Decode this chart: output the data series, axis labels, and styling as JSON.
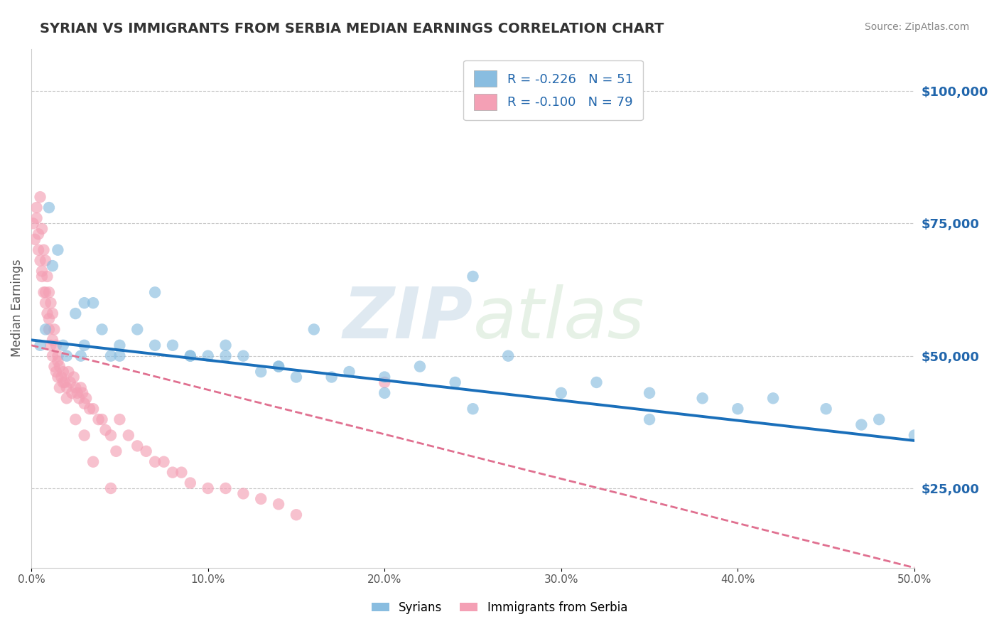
{
  "title": "SYRIAN VS IMMIGRANTS FROM SERBIA MEDIAN EARNINGS CORRELATION CHART",
  "source_text": "Source: ZipAtlas.com",
  "ylabel": "Median Earnings",
  "watermark": "ZIPatlas",
  "legend_label1": "Syrians",
  "legend_label2": "Immigrants from Serbia",
  "r1": -0.226,
  "n1": 51,
  "r2": -0.1,
  "n2": 79,
  "color1": "#89bde0",
  "color2": "#f4a0b5",
  "trend_color1": "#1a6fba",
  "trend_color2": "#e07090",
  "xlim": [
    0.0,
    0.5
  ],
  "ylim": [
    10000,
    108000
  ],
  "yticks": [
    25000,
    50000,
    75000,
    100000
  ],
  "ytick_labels": [
    "$25,000",
    "$50,000",
    "$75,000",
    "$100,000"
  ],
  "xticks": [
    0.0,
    0.1,
    0.2,
    0.3,
    0.4,
    0.5
  ],
  "xtick_labels": [
    "0.0%",
    "10.0%",
    "20.0%",
    "30.0%",
    "40.0%",
    "50.0%"
  ],
  "background_color": "#ffffff",
  "grid_color": "#c8c8c8",
  "syrians_x": [
    0.005,
    0.008,
    0.01,
    0.012,
    0.015,
    0.018,
    0.02,
    0.025,
    0.028,
    0.03,
    0.035,
    0.04,
    0.045,
    0.05,
    0.06,
    0.07,
    0.08,
    0.09,
    0.1,
    0.11,
    0.12,
    0.13,
    0.14,
    0.15,
    0.16,
    0.18,
    0.2,
    0.22,
    0.24,
    0.25,
    0.27,
    0.3,
    0.32,
    0.35,
    0.38,
    0.4,
    0.42,
    0.45,
    0.48,
    0.5,
    0.03,
    0.05,
    0.07,
    0.09,
    0.11,
    0.14,
    0.17,
    0.2,
    0.25,
    0.35,
    0.47
  ],
  "syrians_y": [
    52000,
    55000,
    78000,
    67000,
    70000,
    52000,
    50000,
    58000,
    50000,
    52000,
    60000,
    55000,
    50000,
    50000,
    55000,
    62000,
    52000,
    50000,
    50000,
    52000,
    50000,
    47000,
    48000,
    46000,
    55000,
    47000,
    46000,
    48000,
    45000,
    65000,
    50000,
    43000,
    45000,
    43000,
    42000,
    40000,
    42000,
    40000,
    38000,
    35000,
    60000,
    52000,
    52000,
    50000,
    50000,
    48000,
    46000,
    43000,
    40000,
    38000,
    37000
  ],
  "serbia_x": [
    0.001,
    0.002,
    0.003,
    0.004,
    0.005,
    0.005,
    0.006,
    0.006,
    0.007,
    0.007,
    0.008,
    0.008,
    0.009,
    0.009,
    0.01,
    0.01,
    0.011,
    0.011,
    0.012,
    0.012,
    0.013,
    0.013,
    0.014,
    0.014,
    0.015,
    0.015,
    0.016,
    0.016,
    0.017,
    0.018,
    0.019,
    0.02,
    0.021,
    0.022,
    0.023,
    0.024,
    0.025,
    0.026,
    0.027,
    0.028,
    0.029,
    0.03,
    0.031,
    0.033,
    0.035,
    0.038,
    0.04,
    0.042,
    0.045,
    0.048,
    0.05,
    0.055,
    0.06,
    0.065,
    0.07,
    0.075,
    0.08,
    0.085,
    0.09,
    0.1,
    0.11,
    0.12,
    0.13,
    0.14,
    0.15,
    0.003,
    0.004,
    0.006,
    0.008,
    0.01,
    0.012,
    0.015,
    0.018,
    0.02,
    0.025,
    0.03,
    0.035,
    0.045,
    0.2
  ],
  "serbia_y": [
    75000,
    72000,
    78000,
    70000,
    80000,
    68000,
    74000,
    65000,
    70000,
    62000,
    68000,
    60000,
    65000,
    58000,
    62000,
    55000,
    60000,
    52000,
    58000,
    50000,
    55000,
    48000,
    52000,
    47000,
    50000,
    46000,
    48000,
    44000,
    46000,
    47000,
    45000,
    44000,
    47000,
    45000,
    43000,
    46000,
    44000,
    43000,
    42000,
    44000,
    43000,
    41000,
    42000,
    40000,
    40000,
    38000,
    38000,
    36000,
    35000,
    32000,
    38000,
    35000,
    33000,
    32000,
    30000,
    30000,
    28000,
    28000,
    26000,
    25000,
    25000,
    24000,
    23000,
    22000,
    20000,
    76000,
    73000,
    66000,
    62000,
    57000,
    53000,
    49000,
    45000,
    42000,
    38000,
    35000,
    30000,
    25000,
    45000
  ],
  "trend1_x0": 0.0,
  "trend1_y0": 53000,
  "trend1_x1": 0.5,
  "trend1_y1": 34000,
  "trend2_x0": 0.0,
  "trend2_y0": 52000,
  "trend2_x1": 0.5,
  "trend2_y1": 10000
}
